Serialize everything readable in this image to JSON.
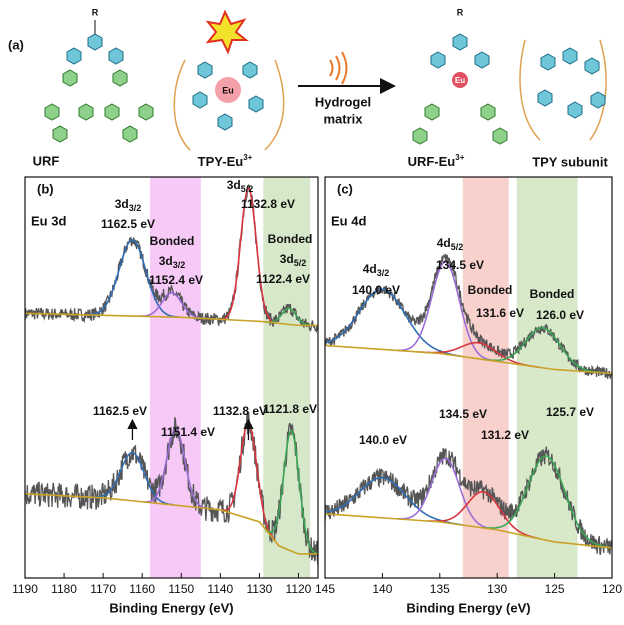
{
  "scheme": {
    "label": "(a)",
    "r_left": "R",
    "r_right": "R",
    "eu_left": "Eu",
    "eu_right": "Eu",
    "urf": "URF",
    "tpy_eu": {
      "text": "TPY-Eu",
      "sup": "3+"
    },
    "arrow_top": "Hydrogel",
    "arrow_bottom": "matrix",
    "urf_eu": {
      "text": "URF-Eu",
      "sup": "3+"
    },
    "tpy_subunit": "TPY subunit"
  },
  "chart_data": [
    {
      "type": "line",
      "panel_label": "(b)",
      "subtitle": "Eu 3d",
      "xlabel": "Binding Energy (eV)",
      "xlim": [
        1190,
        1115
      ],
      "xticks": [
        1190,
        1180,
        1170,
        1160,
        1150,
        1140,
        1130,
        1120
      ],
      "ylim": [
        0,
        100
      ],
      "bands": [
        {
          "xlim": [
            1158,
            1145
          ],
          "color": "#f7c9f7"
        },
        {
          "xlim": [
            1129,
            1117
          ],
          "color": "#d6e8c9"
        }
      ],
      "baseline_color": "#c9a227",
      "raw_color": "#555555",
      "spectra": [
        {
          "baseline": {
            "x": [
              1190,
              1170,
              1150,
              1130,
              1120,
              1115
            ],
            "values": [
              66,
              65.5,
              65,
              64,
              63,
              63
            ]
          },
          "peaks": [
            {
              "center": 1162.5,
              "height": 19,
              "width": 3.4,
              "color": "#2f6db5",
              "name": [
                {
                  "text": "3d",
                  "sub": "3/2"
                }
              ],
              "label": "1162.5 eV"
            },
            {
              "center": 1152.4,
              "height": 6,
              "width": 2.5,
              "color": "#9b6dd6",
              "name": [
                "Bonded",
                {
                  "text": "3d",
                  "sub": "3/2"
                }
              ],
              "label": "1152.4 eV"
            },
            {
              "center": 1132.8,
              "height": 33,
              "width": 2.0,
              "color": "#d9363e",
              "name": [
                {
                  "text": "3d",
                  "sub": "5/2"
                }
              ],
              "label": "1132.8 eV"
            },
            {
              "center": 1122.4,
              "height": 4,
              "width": 1.8,
              "color": "#3aa655",
              "name": [
                "Bonded",
                {
                  "text": "3d",
                  "sub": "5/2"
                }
              ],
              "label": "1122.4 eV"
            }
          ]
        },
        {
          "baseline": {
            "x": [
              1190,
              1170,
              1150,
              1140,
              1130,
              1125,
              1120,
              1115
            ],
            "values": [
              21,
              20,
              18,
              17,
              14,
              8,
              6,
              6
            ]
          },
          "peaks": [
            {
              "center": 1162.5,
              "height": 12,
              "width": 3.0,
              "color": "#2f6db5",
              "label": "1162.5 eV"
            },
            {
              "center": 1151.4,
              "height": 19,
              "width": 2.3,
              "color": "#9b6dd6",
              "label": "1151.4 eV"
            },
            {
              "center": 1132.8,
              "height": 24,
              "width": 2.0,
              "color": "#d9363e",
              "label": "1132.8 eV"
            },
            {
              "center": 1121.8,
              "height": 30,
              "width": 2.0,
              "color": "#3aa655",
              "label": "1121.8 eV"
            }
          ]
        }
      ]
    },
    {
      "type": "line",
      "panel_label": "(c)",
      "subtitle": "Eu 4d",
      "xlabel": "Binding Energy (eV)",
      "xlim": [
        145,
        120
      ],
      "xticks": [
        145,
        140,
        135,
        130,
        125,
        120
      ],
      "ylim": [
        0,
        100
      ],
      "bands": [
        {
          "xlim": [
            133,
            129
          ],
          "color": "#f8d1cd"
        },
        {
          "xlim": [
            128.3,
            123
          ],
          "color": "#d8e9ca"
        }
      ],
      "baseline_color": "#c9a227",
      "raw_color": "#555555",
      "spectra": [
        {
          "baseline": {
            "x": [
              145,
              135,
              130,
              125,
              120
            ],
            "values": [
              58,
              56,
              54,
              52,
              51
            ]
          },
          "peaks": [
            {
              "center": 140.0,
              "height": 15,
              "width": 2.0,
              "color": "#2f6db5",
              "name": [
                {
                  "text": "4d",
                  "sub": "3/2"
                }
              ],
              "label": "140.0 eV"
            },
            {
              "center": 134.5,
              "height": 23,
              "width": 1.2,
              "color": "#9b6dd6",
              "name": [
                {
                  "text": "4d",
                  "sub": "5/2"
                }
              ],
              "label": "134.5 eV"
            },
            {
              "center": 131.6,
              "height": 4,
              "width": 1.5,
              "color": "#d9363e",
              "name": [
                "Bonded"
              ],
              "label": "131.6 eV"
            },
            {
              "center": 126.0,
              "height": 10,
              "width": 1.5,
              "color": "#3aa655",
              "name": [
                "Bonded"
              ],
              "label": "126.0 eV"
            }
          ]
        },
        {
          "baseline": {
            "x": [
              145,
              135,
              130,
              125,
              120
            ],
            "values": [
              16,
              14,
              12,
              9,
              7.5
            ]
          },
          "peaks": [
            {
              "center": 140.0,
              "height": 10,
              "width": 2.0,
              "color": "#2f6db5",
              "label": "140.0 eV"
            },
            {
              "center": 134.5,
              "height": 16,
              "width": 1.2,
              "color": "#9b6dd6",
              "label": "134.5 eV"
            },
            {
              "center": 131.2,
              "height": 9,
              "width": 1.4,
              "color": "#d9363e",
              "label": "131.2 eV"
            },
            {
              "center": 125.7,
              "height": 21,
              "width": 1.6,
              "color": "#3aa655",
              "label": "125.7 eV"
            }
          ]
        }
      ]
    }
  ]
}
